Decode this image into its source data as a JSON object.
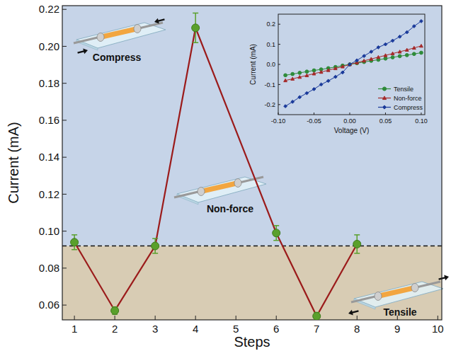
{
  "chart_data": [
    {
      "type": "line",
      "x_label": "Steps",
      "y_label": "Current (mA)",
      "x": [
        1,
        2,
        3,
        4,
        6,
        7,
        8
      ],
      "series": [
        {
          "color": "#9b1b1b",
          "marker": "circle",
          "line_style": "solid",
          "values": [
            0.094,
            0.057,
            0.092,
            0.21,
            0.099,
            0.054,
            0.093
          ],
          "errors": [
            0.004,
            0.002,
            0.004,
            0.008,
            0.004,
            0.002,
            0.005
          ]
        }
      ],
      "reference_line": 0.092,
      "annotations": [
        "Compress",
        "Non-force",
        "Tensile"
      ],
      "xlim": [
        0.7,
        10.1
      ],
      "ylim": [
        0.052,
        0.222
      ],
      "xticks": [
        1,
        2,
        3,
        4,
        5,
        6,
        7,
        8,
        9,
        10
      ],
      "yticks": [
        0.06,
        0.08,
        {
          "value": 0.1,
          "label": "0.10"
        },
        0.12,
        0.14,
        0.16,
        0.18,
        {
          "value": 0.2,
          "label": "0.20"
        },
        0.22
      ],
      "grid": false
    },
    {
      "type": "line",
      "x_label": "Voltage (V)",
      "y_label": "Current (mA)",
      "x": [
        -0.09,
        -0.08,
        -0.07,
        -0.06,
        -0.05,
        -0.04,
        -0.03,
        -0.02,
        -0.01,
        0,
        0.01,
        0.02,
        0.03,
        0.04,
        0.05,
        0.06,
        0.07,
        0.08,
        0.09,
        0.1
      ],
      "series": [
        {
          "name": "Tensile",
          "color": "#2e8b3a",
          "marker": "circle",
          "line_style": "solid",
          "values": [
            -0.054,
            -0.048,
            -0.042,
            -0.036,
            -0.03,
            -0.025,
            -0.019,
            -0.013,
            -0.006,
            0,
            0.006,
            0.012,
            0.018,
            0.023,
            0.029,
            0.035,
            0.041,
            0.046,
            0.052,
            0.058
          ]
        },
        {
          "name": "Non-force",
          "color": "#a52a2a",
          "marker": "triangle",
          "line_style": "solid",
          "values": [
            -0.08,
            -0.072,
            -0.063,
            -0.055,
            -0.046,
            -0.038,
            -0.029,
            -0.02,
            -0.011,
            0,
            0.009,
            0.018,
            0.027,
            0.036,
            0.045,
            0.054,
            0.063,
            0.072,
            0.082,
            0.092
          ]
        },
        {
          "name": "Compress",
          "color": "#1a3a9a",
          "marker": "diamond",
          "line_style": "solid",
          "values": [
            -0.208,
            -0.186,
            -0.163,
            -0.143,
            -0.123,
            -0.1,
            -0.082,
            -0.062,
            -0.04,
            0,
            0.02,
            0.042,
            0.063,
            0.085,
            0.1,
            0.118,
            0.138,
            0.16,
            0.19,
            0.215
          ]
        }
      ],
      "xlim": [
        -0.1,
        0.105
      ],
      "ylim": [
        -0.25,
        0.25
      ],
      "xticks": [
        {
          "value": -0.1,
          "label": "-0.10"
        },
        -0.05,
        {
          "value": 0,
          "label": "0.00"
        },
        0.05,
        {
          "value": 0.1,
          "label": "0.10"
        }
      ],
      "yticks": [
        -0.2,
        -0.1,
        {
          "value": 0,
          "label": "0.0"
        },
        0.1,
        0.2
      ],
      "legend": "lower right",
      "grid": false
    }
  ]
}
